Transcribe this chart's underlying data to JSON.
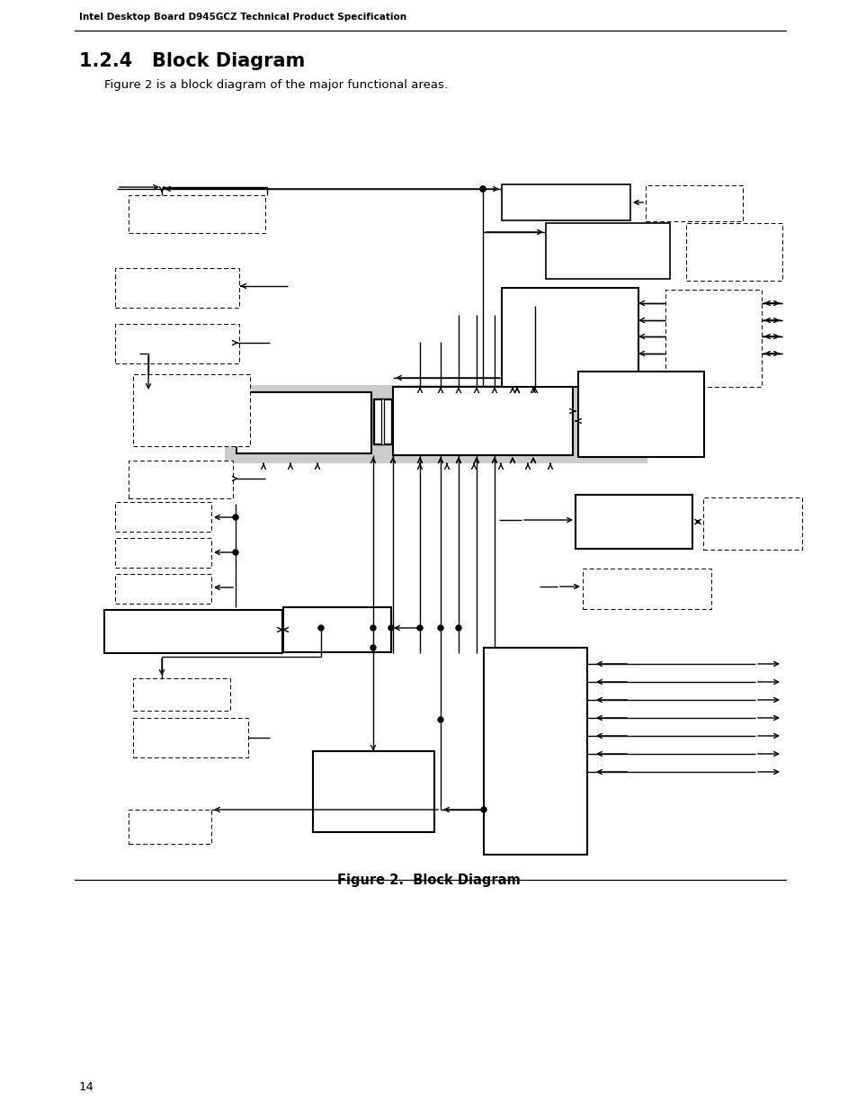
{
  "page_header": "Intel Desktop Board D945GCZ Technical Product Specification",
  "section_title": "1.2.4   Block Diagram",
  "section_desc": "Figure 2 is a block diagram of the major functional areas.",
  "figure_caption": "Figure 2.  Block Diagram",
  "page_number": "14",
  "bg_color": "#ffffff"
}
